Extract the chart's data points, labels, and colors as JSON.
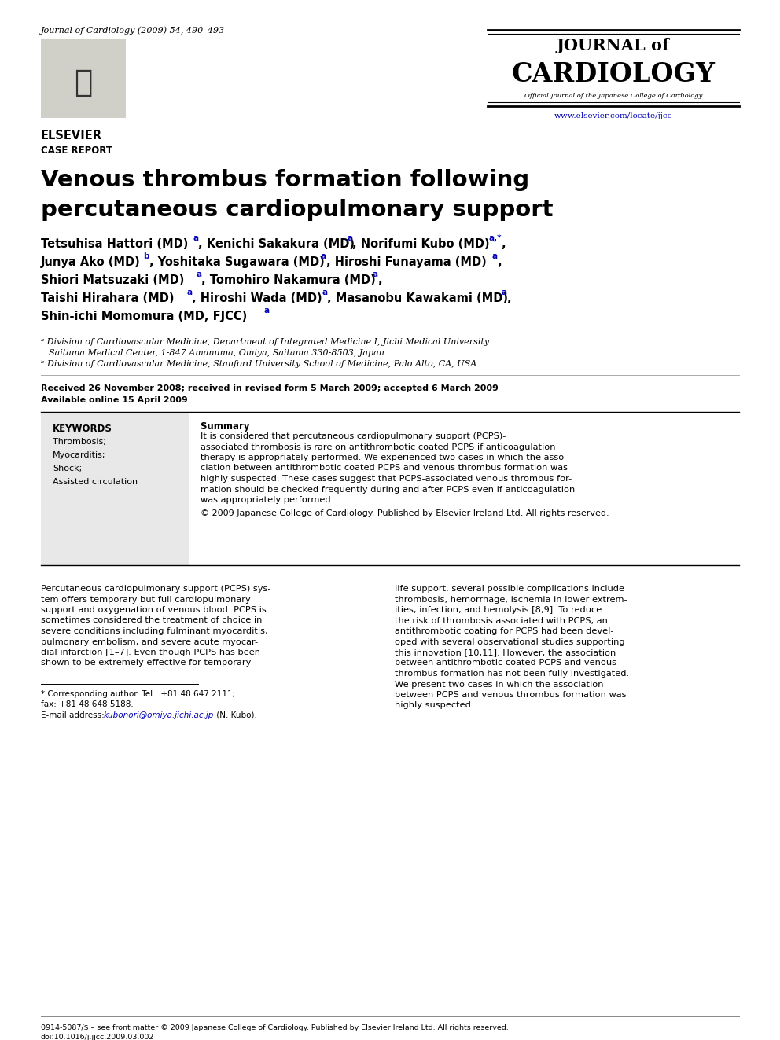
{
  "background_color": "#ffffff",
  "journal_citation": "Journal of Cardiology (2009) 54, 490–493",
  "journal_name_line1": "JOURNAL of",
  "journal_name_line2": "CARDIOLOGY",
  "journal_subtitle": "Official Journal of the Japanese College of Cardiology",
  "journal_url": "www.elsevier.com/locate/jjcc",
  "section_label": "CASE REPORT",
  "article_title_line1": "Venous thrombus formation following",
  "article_title_line2": "percutaneous cardiopulmonary support",
  "received_text": "Received 26 November 2008; received in revised form 5 March 2009; accepted 6 March 2009",
  "available_text": "Available online 15 April 2009",
  "keywords_header": "KEYWORDS",
  "keywords": [
    "Thrombosis;",
    "Myocarditis;",
    "Shock;",
    "Assisted circulation"
  ],
  "summary_label": "Summary",
  "copyright_text": "© 2009 Japanese College of Cardiology. Published by Elsevier Ireland Ltd. All rights reserved.",
  "footnote_star_line1": "* Corresponding author. Tel.: +81 48 647 2111;",
  "footnote_star_line2": "fax: +81 48 648 5188.",
  "footnote_email_prefix": "E-mail address: ",
  "footnote_email_link": "kubonori@omiya.jichi.ac.jp",
  "footnote_email_suffix": " (N. Kubo).",
  "bottom_text": "0914-5087/$ – see front matter © 2009 Japanese College of Cardiology. Published by Elsevier Ireland Ltd. All rights reserved.",
  "doi_text": "doi:10.1016/j.jjcc.2009.03.002",
  "keyword_box_color": "#e8e8e8",
  "blue_color": "#0000bb",
  "text_color": "#000000",
  "summary_lines": [
    "It is considered that percutaneous cardiopulmonary support (PCPS)-",
    "associated thrombosis is rare on antithrombotic coated PCPS if anticoagulation",
    "therapy is appropriately performed. We experienced two cases in which the asso-",
    "ciation between antithrombotic coated PCPS and venous thrombus formation was",
    "highly suspected. These cases suggest that PCPS-associated venous thrombus for-",
    "mation should be checked frequently during and after PCPS even if anticoagulation",
    "was appropriately performed."
  ],
  "body_col1_lines": [
    "Percutaneous cardiopulmonary support (PCPS) sys-",
    "tem offers temporary but full cardiopulmonary",
    "support and oxygenation of venous blood. PCPS is",
    "sometimes considered the treatment of choice in",
    "severe conditions including fulminant myocarditis,",
    "pulmonary embolism, and severe acute myocar-",
    "dial infarction [1–7]. Even though PCPS has been",
    "shown to be extremely effective for temporary"
  ],
  "body_col2_lines": [
    "life support, several possible complications include",
    "thrombosis, hemorrhage, ischemia in lower extrem-",
    "ities, infection, and hemolysis [8,9]. To reduce",
    "the risk of thrombosis associated with PCPS, an",
    "antithrombotic coating for PCPS had been devel-",
    "oped with several observational studies supporting",
    "this innovation [10,11]. However, the association",
    "between antithrombotic coated PCPS and venous",
    "thrombus formation has not been fully investigated.",
    "We present two cases in which the association",
    "between PCPS and venous thrombus formation was",
    "highly suspected."
  ]
}
